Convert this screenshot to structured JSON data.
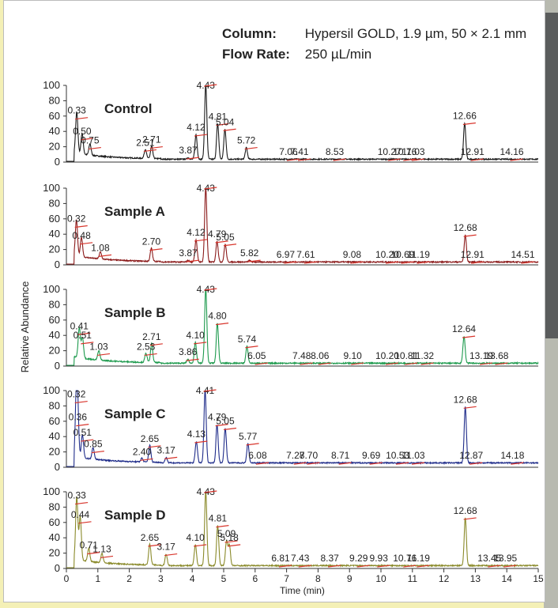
{
  "conditions": {
    "column_label": "Column:",
    "column_value": "Hypersil GOLD, 1.9 µm, 50 × 2.1 mm",
    "flow_label": "Flow Rate:",
    "flow_value": "250 µL/min"
  },
  "colors": {
    "background": "#f4f0b6",
    "annotation_tick": "#d8352c"
  },
  "chart_data": {
    "type": "line",
    "xlabel": "Time (min)",
    "ylabel": "Relative Abundance",
    "xlim": [
      0,
      15
    ],
    "ylim": [
      0,
      100
    ],
    "x_ticks": [
      "0",
      "1",
      "2",
      "3",
      "4",
      "5",
      "6",
      "7",
      "8",
      "9",
      "10",
      "11",
      "12",
      "13",
      "14",
      "15"
    ],
    "y_ticks": [
      "0",
      "20",
      "40",
      "60",
      "80",
      "100"
    ],
    "series": [
      {
        "name": "Control",
        "color": "#1a1a1a",
        "baseline": 3,
        "peaks": [
          [
            0.33,
            57
          ],
          [
            0.5,
            30
          ],
          [
            0.75,
            18
          ],
          [
            2.51,
            15
          ],
          [
            2.71,
            19
          ],
          [
            3.87,
            5
          ],
          [
            4.12,
            35
          ],
          [
            4.43,
            100
          ],
          [
            4.81,
            49
          ],
          [
            5.04,
            42
          ],
          [
            5.72,
            18
          ],
          [
            7.06,
            3
          ],
          [
            7.41,
            3
          ],
          [
            8.53,
            3
          ],
          [
            10.27,
            3
          ],
          [
            10.76,
            3
          ],
          [
            11.03,
            3
          ],
          [
            12.66,
            50
          ],
          [
            12.91,
            3
          ],
          [
            14.16,
            3
          ]
        ],
        "labels": [
          "0.33",
          "0.50",
          "0.75",
          "2.51",
          "2.71",
          "3.87",
          "4.12",
          "4.43",
          "4.81",
          "5.04",
          "5.72",
          "7.06",
          "7.41",
          "8.53",
          "10.27",
          "10.76",
          "11.03",
          "12.66",
          "12.91",
          "14.16"
        ]
      },
      {
        "name": "Sample A",
        "color": "#8b1a1a",
        "baseline": 3,
        "peaks": [
          [
            0.32,
            50
          ],
          [
            0.48,
            28
          ],
          [
            1.08,
            12
          ],
          [
            2.7,
            20
          ],
          [
            3.87,
            5
          ],
          [
            4.12,
            32
          ],
          [
            4.43,
            100
          ],
          [
            4.79,
            30
          ],
          [
            5.05,
            26
          ],
          [
            5.82,
            5
          ],
          [
            6.97,
            3
          ],
          [
            7.61,
            3
          ],
          [
            9.08,
            3
          ],
          [
            10.2,
            3
          ],
          [
            10.69,
            3
          ],
          [
            11.19,
            3
          ],
          [
            12.68,
            38
          ],
          [
            12.91,
            3
          ],
          [
            14.51,
            3
          ]
        ],
        "labels": [
          "0.32",
          "0.48",
          "1.08",
          "2.70",
          "3.87",
          "4.12",
          "4.43",
          "4.79",
          "5.05",
          "5.82",
          "6.97",
          "7.61",
          "9.08",
          "10.20",
          "10.69",
          "11.19",
          "12.68",
          "12.91",
          "14.51"
        ]
      },
      {
        "name": "Sample B",
        "color": "#1d9a4d",
        "baseline": 3,
        "peaks": [
          [
            0.41,
            42
          ],
          [
            0.51,
            30
          ],
          [
            1.03,
            15
          ],
          [
            2.53,
            15
          ],
          [
            2.71,
            28
          ],
          [
            3.86,
            8
          ],
          [
            4.1,
            30
          ],
          [
            4.43,
            100
          ],
          [
            4.8,
            55
          ],
          [
            5.74,
            25
          ],
          [
            6.05,
            3
          ],
          [
            7.48,
            3
          ],
          [
            8.06,
            3
          ],
          [
            9.1,
            3
          ],
          [
            10.2,
            3
          ],
          [
            10.81,
            3
          ],
          [
            11.32,
            3
          ],
          [
            12.64,
            38
          ],
          [
            13.19,
            3
          ],
          [
            13.68,
            3
          ]
        ],
        "labels": [
          "0.41",
          "0.51",
          "1.03",
          "2.53",
          "2.71",
          "3.86",
          "4.10",
          "4.43",
          "4.80",
          "5.74",
          "6.05",
          "7.48",
          "8.06",
          "9.10",
          "10.20",
          "10.81",
          "11.32",
          "12.64",
          "13.19",
          "13.68"
        ]
      },
      {
        "name": "Sample C",
        "color": "#1f2c8a",
        "baseline": 5,
        "peaks": [
          [
            0.32,
            85
          ],
          [
            0.36,
            55
          ],
          [
            0.51,
            35
          ],
          [
            0.85,
            20
          ],
          [
            2.4,
            10
          ],
          [
            2.65,
            27
          ],
          [
            3.17,
            12
          ],
          [
            4.13,
            33
          ],
          [
            4.41,
            100
          ],
          [
            4.79,
            55
          ],
          [
            5.05,
            50
          ],
          [
            5.77,
            30
          ],
          [
            6.08,
            5
          ],
          [
            7.28,
            5
          ],
          [
            7.7,
            5
          ],
          [
            8.71,
            5
          ],
          [
            9.69,
            5
          ],
          [
            10.53,
            5
          ],
          [
            11.03,
            5
          ],
          [
            12.68,
            78
          ],
          [
            12.87,
            5
          ],
          [
            14.18,
            5
          ]
        ],
        "labels": [
          "0.32",
          "0.36",
          "0.51",
          "0.85",
          "2.40",
          "2.65",
          "3.17",
          "4.13",
          "4.41",
          "4.79",
          "5.05",
          "5.77",
          "6.08",
          "7.28",
          "7.70",
          "8.71",
          "9.69",
          "10.53",
          "11.03",
          "12.68",
          "12.87",
          "14.18"
        ]
      },
      {
        "name": "Sample D",
        "color": "#8a8a2a",
        "baseline": 3,
        "peaks": [
          [
            0.33,
            85
          ],
          [
            0.44,
            60
          ],
          [
            0.71,
            20
          ],
          [
            1.13,
            15
          ],
          [
            2.65,
            30
          ],
          [
            3.17,
            18
          ],
          [
            4.1,
            30
          ],
          [
            4.43,
            100
          ],
          [
            4.81,
            55
          ],
          [
            5.09,
            35
          ],
          [
            5.18,
            30
          ],
          [
            6.81,
            3
          ],
          [
            7.43,
            3
          ],
          [
            8.37,
            3
          ],
          [
            9.29,
            3
          ],
          [
            9.93,
            3
          ],
          [
            10.76,
            3
          ],
          [
            11.19,
            3
          ],
          [
            12.68,
            65
          ],
          [
            13.45,
            3
          ],
          [
            13.95,
            3
          ]
        ],
        "labels": [
          "0.33",
          "0.44",
          "0.71",
          "1.13",
          "2.65",
          "3.17",
          "4.10",
          "4.43",
          "4.81",
          "5.09",
          "5.18",
          "6.81",
          "7.43",
          "8.37",
          "9.29",
          "9.93",
          "10.76",
          "11.19",
          "12.68",
          "13.45",
          "13.95"
        ]
      }
    ]
  }
}
